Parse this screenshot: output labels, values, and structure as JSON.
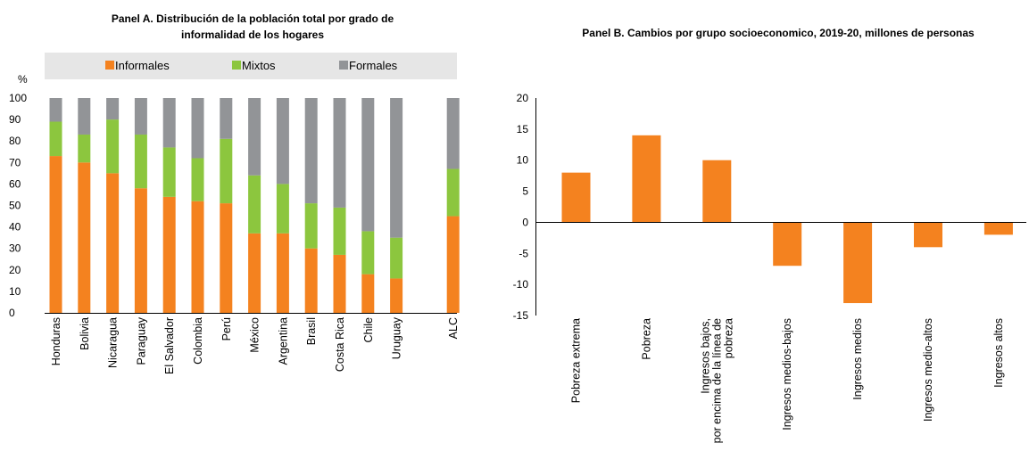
{
  "chart_data": [
    {
      "type": "bar",
      "stacked": true,
      "title_lines": [
        "Panel A. Distribución de la población total por grado de",
        "informalidad de los hogares"
      ],
      "ylabel": "%",
      "ylim": [
        0,
        100
      ],
      "yticks": [
        0,
        10,
        20,
        30,
        40,
        50,
        60,
        70,
        80,
        90,
        100
      ],
      "legend_position": "top",
      "categories": [
        "Honduras",
        "Bolivia",
        "Nicaragua",
        "Paraguay",
        "El Salvador",
        "Colombia",
        "Perú",
        "México",
        "Argentina",
        "Brasil",
        "Costa Rica",
        "Chile",
        "Uruguay",
        "",
        "ALC"
      ],
      "series": [
        {
          "name": "Informales",
          "color": "#f4821f",
          "values": [
            73,
            70,
            65,
            58,
            54,
            52,
            51,
            37,
            37,
            30,
            27,
            18,
            16,
            null,
            45
          ]
        },
        {
          "name": "Mixtos",
          "color": "#8cc63e",
          "values": [
            16,
            13,
            25,
            25,
            23,
            20,
            30,
            27,
            23,
            21,
            22,
            20,
            19,
            null,
            22
          ]
        },
        {
          "name": "Formales",
          "color": "#929497",
          "values": [
            11,
            17,
            10,
            17,
            23,
            28,
            19,
            36,
            40,
            49,
            51,
            62,
            65,
            null,
            33
          ]
        }
      ]
    },
    {
      "type": "bar",
      "title": "Panel B. Cambios por grupo socioeconomico, 2019-20, millones de personas",
      "ylim": [
        -15,
        20
      ],
      "yticks": [
        20,
        15,
        10,
        5,
        0,
        -5,
        -10,
        -15
      ],
      "color": "#f4821f",
      "categories": [
        [
          "Pobreza extrema"
        ],
        [
          "Pobreza"
        ],
        [
          "Ingresos bajos,",
          "por encima de la línea de",
          "pobreza"
        ],
        [
          "Ingresos medios-bajos"
        ],
        [
          "Ingresos medios"
        ],
        [
          "Ingresos medio-altos"
        ],
        [
          "Ingresos altos"
        ]
      ],
      "values": [
        8,
        14,
        10,
        -7,
        -13,
        -4,
        -2
      ]
    }
  ]
}
